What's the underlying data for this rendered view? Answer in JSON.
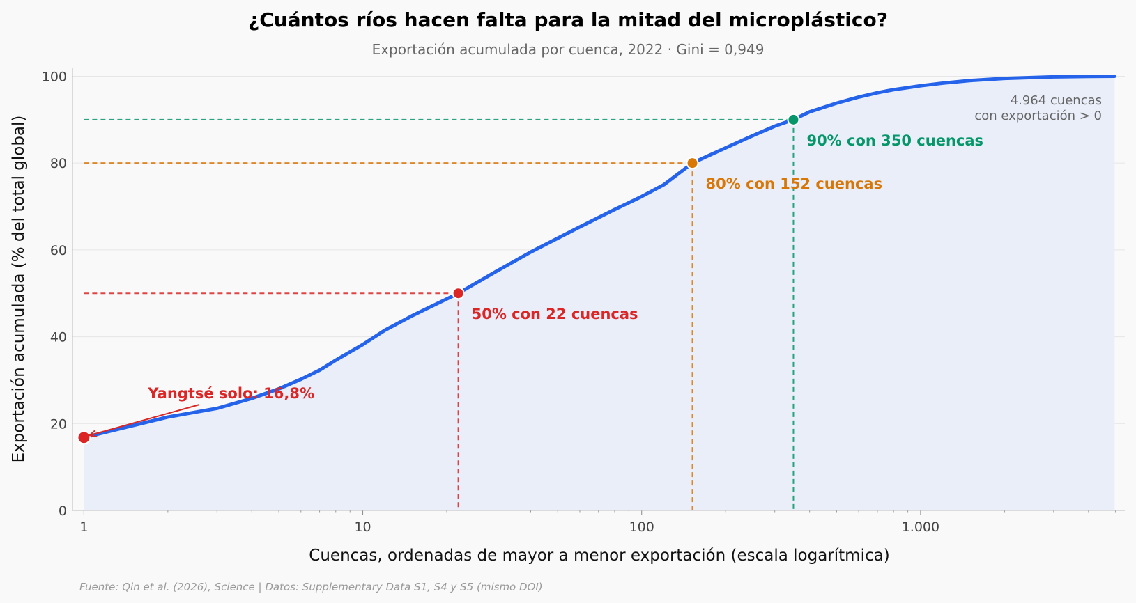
{
  "chart_data": {
    "type": "line",
    "title": "¿Cuántos ríos hacen falta para la mitad del microplástico?",
    "subtitle": "Exportación acumulada por cuenca, 2022 · Gini = 0,949",
    "xlabel": "Cuencas, ordenadas de mayor a menor exportación (escala logarítmica)",
    "ylabel": "Exportación acumulada (% del total global)",
    "x_scale": "log",
    "xlim": [
      0.91,
      5400
    ],
    "ylim": [
      0,
      102
    ],
    "x_ticks": [
      {
        "value": 1,
        "label": "1"
      },
      {
        "value": 10,
        "label": "10"
      },
      {
        "value": 100,
        "label": "100"
      },
      {
        "value": 1000,
        "label": "1.000"
      }
    ],
    "y_ticks": [
      {
        "value": 0,
        "label": "0"
      },
      {
        "value": 20,
        "label": "20"
      },
      {
        "value": 40,
        "label": "40"
      },
      {
        "value": 60,
        "label": "60"
      },
      {
        "value": 80,
        "label": "80"
      },
      {
        "value": 100,
        "label": "100"
      }
    ],
    "grid": "horizontal",
    "series": [
      {
        "color": "#2563eb",
        "fill": "#e9eef9",
        "x": [
          1,
          2,
          3,
          4,
          5,
          6,
          7,
          8,
          10,
          12,
          15,
          17,
          22,
          30,
          40,
          60,
          80,
          100,
          120,
          152,
          200,
          250,
          300,
          350,
          400,
          500,
          600,
          700,
          800,
          1000,
          1200,
          1500,
          2000,
          2500,
          3000,
          4000,
          4964
        ],
        "y": [
          16.8,
          21.5,
          23.5,
          25.8,
          28.0,
          30.2,
          32.3,
          34.6,
          38.2,
          41.5,
          44.8,
          46.5,
          50,
          55.0,
          59.5,
          65.3,
          69.3,
          72.3,
          75.0,
          80,
          83.5,
          86.3,
          88.5,
          90,
          91.8,
          93.8,
          95.2,
          96.2,
          96.9,
          97.8,
          98.4,
          99.0,
          99.5,
          99.7,
          99.85,
          99.95,
          100
        ]
      }
    ],
    "markers": [
      {
        "x": 22,
        "y": 50,
        "color": "#dc2626",
        "label": "50% con 22 cuencas"
      },
      {
        "x": 152,
        "y": 80,
        "color": "#d97706",
        "label": "80% con 152 cuencas"
      },
      {
        "x": 350,
        "y": 90,
        "color": "#059669",
        "label": "90% con 350 cuencas"
      }
    ],
    "highlight": {
      "x": 1,
      "y": 16.8,
      "color": "#dc2626",
      "label": "Yangtsé solo: 16,8%"
    },
    "note": [
      "4.964 cuencas",
      "con exportación > 0"
    ],
    "source": "Fuente: Qin et al. (2026), Science | Datos: Supplementary Data S1, S4 y S5 (mismo DOI)"
  }
}
